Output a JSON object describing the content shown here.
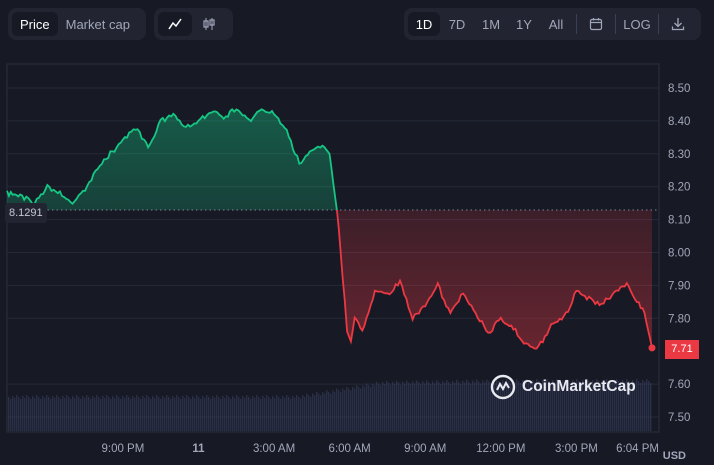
{
  "toolbar": {
    "view_tabs": [
      {
        "label": "Price",
        "active": true
      },
      {
        "label": "Market cap",
        "active": false
      }
    ],
    "chart_type_icons": [
      "line-chart-icon",
      "candlestick-icon"
    ],
    "ranges": [
      {
        "label": "1D",
        "active": true
      },
      {
        "label": "7D",
        "active": false
      },
      {
        "label": "1M",
        "active": false
      },
      {
        "label": "1Y",
        "active": false
      },
      {
        "label": "All",
        "active": false
      }
    ],
    "calendar_icon": "calendar-icon",
    "log_label": "LOG",
    "download_icon": "download-icon"
  },
  "reference_price": "8.1291",
  "last_price_label": "7.71",
  "currency": "USD",
  "watermark": "CoinMarketCap",
  "colors": {
    "background": "#171924",
    "up": "#16c784",
    "down": "#ea3943",
    "volume": "#3a4266"
  },
  "chart_data": {
    "type": "line",
    "x_ticks": [
      "9:00 PM",
      "11",
      "3:00 AM",
      "6:00 AM",
      "9:00 AM",
      "12:00 PM",
      "3:00 PM",
      "6:04 PM"
    ],
    "y_ticks": [
      "8.50",
      "8.40",
      "8.30",
      "8.20",
      "8.10",
      "8.00",
      "7.90",
      "7.80",
      "7.71",
      "7.60",
      "7.50"
    ],
    "ylim": [
      7.45,
      8.55
    ],
    "baseline": 8.1291,
    "last_value": 7.71,
    "x_domain_hours": [
      -25.6,
      0
    ],
    "series": [
      {
        "x": [
          -25.6,
          -25.0,
          -24.5,
          -24.0,
          -23.5,
          -23.0,
          -22.5,
          -22.0,
          -21.5,
          -21.0,
          -20.5,
          -20.0,
          -19.5,
          -19.0,
          -18.5,
          -18.0,
          -17.5,
          -17.0,
          -16.5,
          -16.0,
          -15.5,
          -15.0,
          -14.5,
          -14.0,
          -13.5,
          -13.0,
          -12.8,
          -12.5,
          -12.2,
          -12.1,
          -11.95,
          -11.8,
          -11.5,
          -11.0,
          -10.5,
          -10.0,
          -9.5,
          -9.0,
          -8.5,
          -8.0,
          -7.5,
          -7.0,
          -6.5,
          -6.0,
          -5.5,
          -5.0,
          -4.5,
          -4.0,
          -3.5,
          -3.0,
          -2.5,
          -2.0,
          -1.5,
          -1.0,
          -0.6,
          -0.3,
          0
        ],
        "values": [
          8.18,
          8.17,
          8.15,
          8.2,
          8.18,
          8.15,
          8.19,
          8.26,
          8.3,
          8.34,
          8.38,
          8.32,
          8.4,
          8.42,
          8.38,
          8.4,
          8.43,
          8.41,
          8.44,
          8.4,
          8.44,
          8.42,
          8.37,
          8.27,
          8.31,
          8.32,
          8.3,
          8.13,
          7.86,
          7.76,
          7.73,
          7.8,
          7.76,
          7.88,
          7.87,
          7.91,
          7.8,
          7.84,
          7.9,
          7.81,
          7.88,
          7.82,
          7.75,
          7.8,
          7.77,
          7.72,
          7.71,
          7.78,
          7.8,
          7.88,
          7.86,
          7.84,
          7.88,
          7.9,
          7.85,
          7.82,
          7.71
        ]
      }
    ]
  }
}
